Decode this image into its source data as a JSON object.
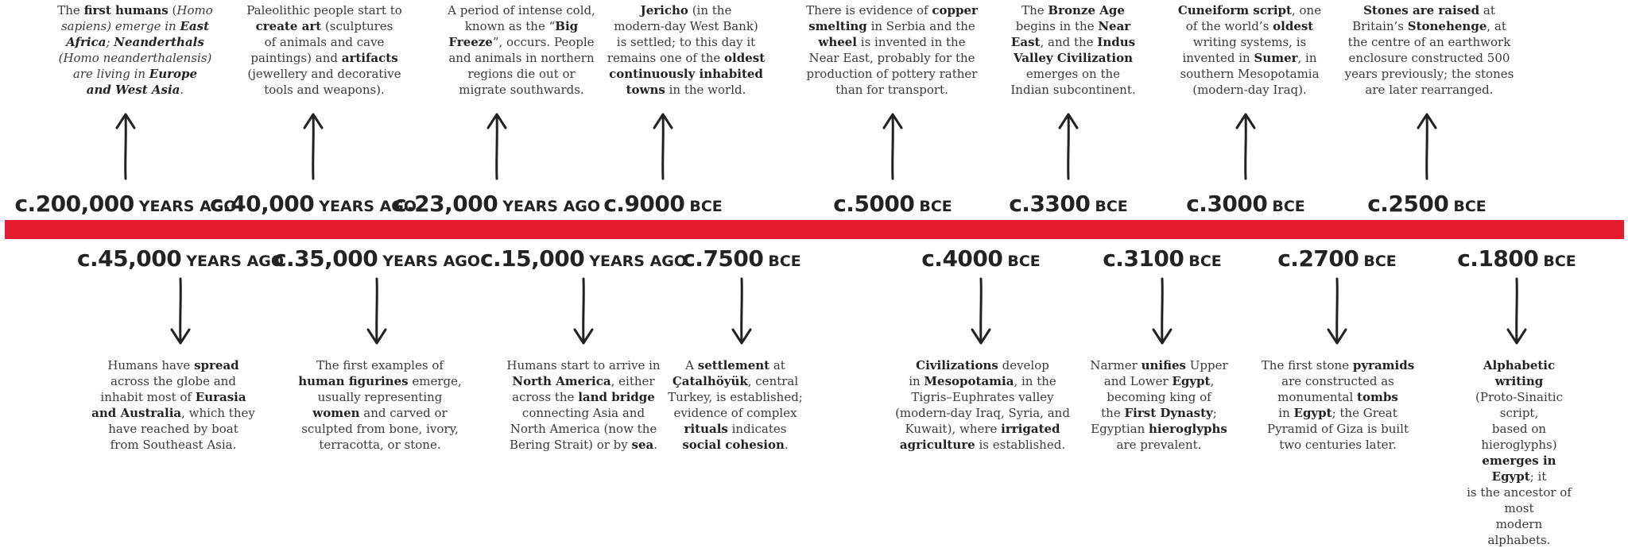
{
  "colors": {
    "timeline_bar": "#e51c2e",
    "text": "#333333",
    "arrow": "#222222"
  },
  "arrow_icon": "hand-drawn-arrow",
  "top_events": [
    {
      "date": "c.200,000",
      "unit": "YEARS AGO",
      "lines": [
        "The [first humans] (<i>Homo",
        "<i>sapiens</i>) emerge in [East",
        "Africa]; [Neanderthals]",
        "(<i>Homo neanderthalensis</i>)",
        "are living in [Europe",
        "and West Asia]."
      ]
    },
    {
      "date": "c.40,000",
      "unit": "YEARS AGO",
      "lines": [
        "Paleolithic people start to",
        "[create art] (sculptures",
        "of animals and cave",
        "paintings) and [artifacts]",
        "(jewellery and decorative",
        "tools and weapons)."
      ]
    },
    {
      "date": "c.23,000",
      "unit": "YEARS AGO",
      "lines": [
        "A period of intense cold,",
        "known as the “[Big",
        "Freeze]”, occurs. People",
        "and animals in northern",
        "regions die out or",
        "migrate southwards."
      ]
    },
    {
      "date": "c.9000",
      "unit": "BCE",
      "lines": [
        "[Jericho] (in the",
        "modern-day West Bank)",
        "is settled; to this day it",
        "remains one of the [oldest",
        "continuously inhabited",
        "towns] in the world."
      ]
    },
    {
      "date": "c.5000",
      "unit": "BCE",
      "lines": [
        "There is evidence of [copper",
        "smelting] in Serbia and the",
        "[wheel] is invented in the",
        "Near East, probably for the",
        "production of pottery rather",
        "than for transport."
      ]
    },
    {
      "date": "c.3300",
      "unit": "BCE",
      "lines": [
        "The [Bronze Age]",
        "begins in the [Near",
        "East], and the [Indus",
        "Valley Civilization]",
        "emerges on the",
        "Indian subcontinent."
      ]
    },
    {
      "date": "c.3000",
      "unit": "BCE",
      "lines": [
        "[Cuneiform script], one",
        "of the world’s [oldest]",
        "writing systems, is",
        "invented in [Sumer], in",
        "southern Mesopotamia",
        "(modern-day Iraq)."
      ]
    },
    {
      "date": "c.2500",
      "unit": "BCE",
      "lines": [
        "[Stones are raised] at",
        "Britain’s [Stonehenge], at",
        "the centre of an earthwork",
        "enclosure constructed 500",
        "years previously; the stones",
        "are later rearranged."
      ]
    }
  ],
  "bottom_events": [
    {
      "date": "c.45,000",
      "unit": "YEARS AGO",
      "lines": [
        "Humans have [spread]",
        "across the globe and",
        "inhabit most of [Eurasia",
        "and Australia], which they",
        "have reached by boat",
        "from Southeast Asia."
      ]
    },
    {
      "date": "c.35,000",
      "unit": "YEARS AGO",
      "lines": [
        "The first examples of",
        "[human figurines] emerge,",
        "usually representing",
        "[women] and carved or",
        "sculpted from bone, ivory,",
        "terracotta, or stone."
      ]
    },
    {
      "date": "c.15,000",
      "unit": "YEARS AGO",
      "lines": [
        "Humans start to arrive in",
        "[North America], either",
        "across the [land bridge]",
        "connecting Asia and",
        "North America (now the",
        "Bering Strait) or by [sea]."
      ]
    },
    {
      "date": "c.7500",
      "unit": "BCE",
      "lines": [
        "A [settlement] at",
        "[Çatalhöyük], central",
        "Turkey, is established;",
        "evidence of complex",
        "[rituals] indicates",
        "[social cohesion]."
      ]
    },
    {
      "date": "c.4000",
      "unit": "BCE",
      "lines": [
        "[Civilizations] develop",
        "in [Mesopotamia], in the",
        "Tigris–Euphrates valley",
        "(modern-day Iraq, Syria, and",
        "Kuwait), where [irrigated",
        "agriculture] is established."
      ]
    },
    {
      "date": "c.3100",
      "unit": "BCE",
      "lines": [
        "Narmer [unifies] Upper",
        "and Lower [Egypt],",
        "becoming king of",
        "the [First Dynasty];",
        "Egyptian [hieroglyphs]",
        "are prevalent."
      ]
    },
    {
      "date": "c.2700",
      "unit": "BCE",
      "lines": [
        "The first stone [pyramids]",
        "are constructed as",
        "monumental [tombs]",
        "in [Egypt]; the Great",
        "Pyramid of Giza is built",
        "two centuries later."
      ]
    },
    {
      "date": "c.1800",
      "unit": "BCE",
      "lines": [
        "[Alphabetic writing]",
        "(Proto-Sinaitic script,",
        "based on hieroglyphs)",
        "[emerges in Egypt]; it",
        "is the ancestor of most",
        "modern alphabets."
      ]
    }
  ]
}
